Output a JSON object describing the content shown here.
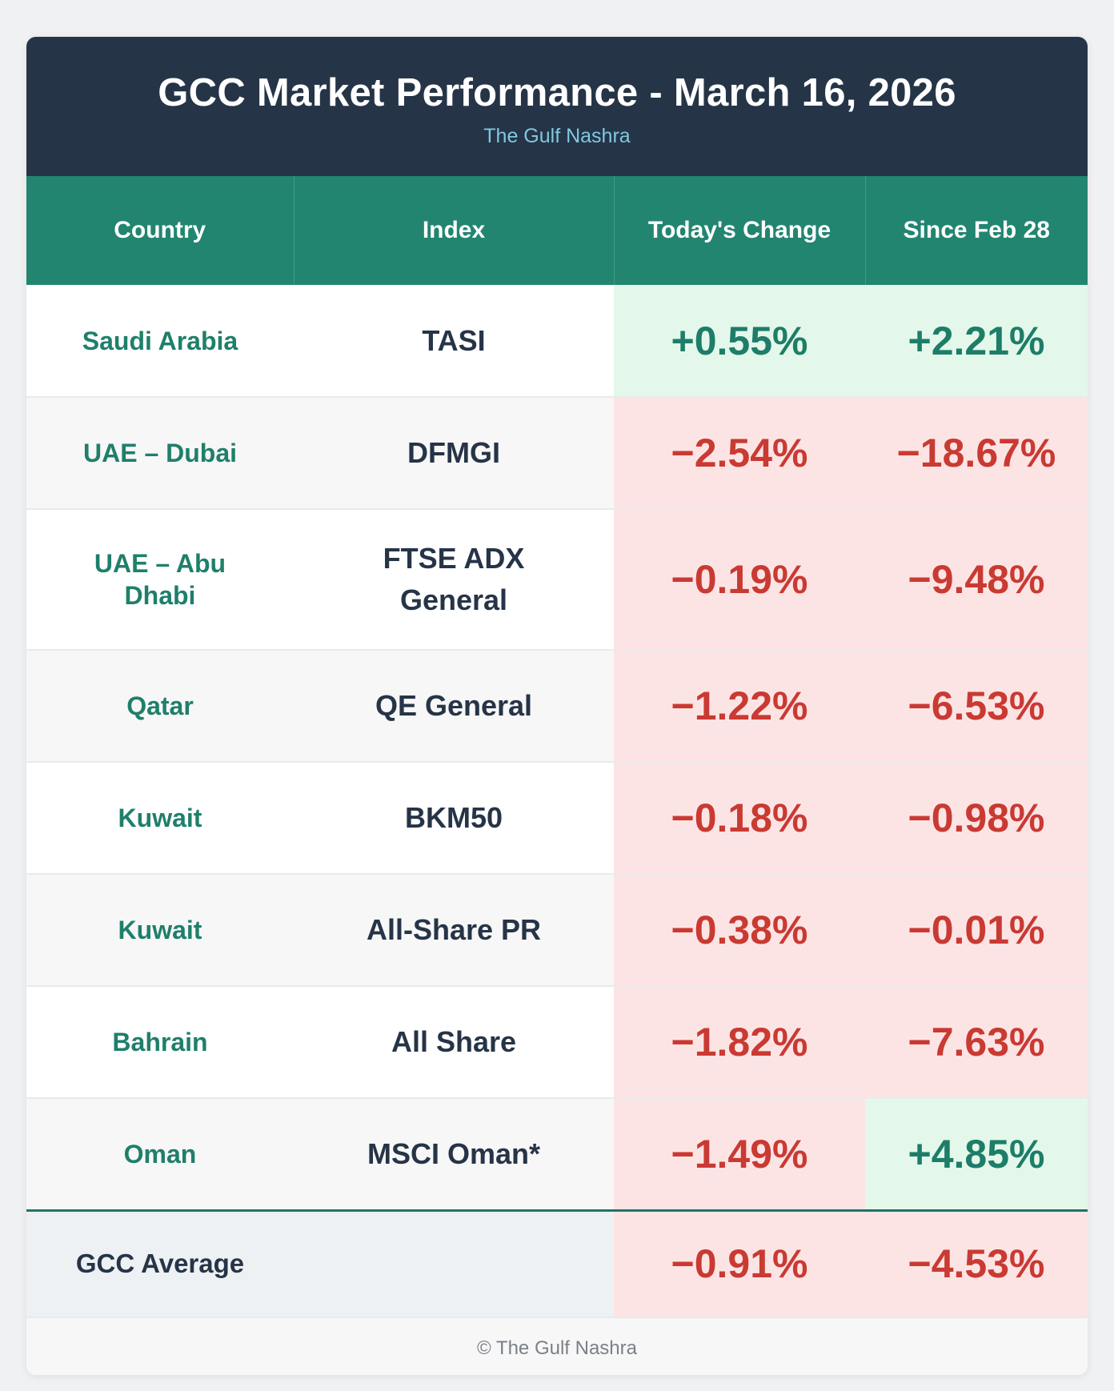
{
  "header": {
    "title": "GCC Market Performance - March 16, 2026",
    "subtitle": "The Gulf Nashra"
  },
  "chart_data": {
    "type": "table",
    "columns": [
      "Country",
      "Index",
      "Today's Change",
      "Since Feb 28"
    ],
    "rows": [
      {
        "country": "Saudi Arabia",
        "index": "TASI",
        "today": "+0.55%",
        "since": "+2.21%",
        "today_value": 0.55,
        "since_value": 2.21
      },
      {
        "country": "UAE – Dubai",
        "index": "DFMGI",
        "today": "−2.54%",
        "since": "−18.67%",
        "today_value": -2.54,
        "since_value": -18.67
      },
      {
        "country": "UAE – Abu Dhabi",
        "index": "FTSE ADX General",
        "today": "−0.19%",
        "since": "−9.48%",
        "today_value": -0.19,
        "since_value": -9.48
      },
      {
        "country": "Qatar",
        "index": "QE General",
        "today": "−1.22%",
        "since": "−6.53%",
        "today_value": -1.22,
        "since_value": -6.53
      },
      {
        "country": "Kuwait",
        "index": "BKM50",
        "today": "−0.18%",
        "since": "−0.98%",
        "today_value": -0.18,
        "since_value": -0.98
      },
      {
        "country": "Kuwait",
        "index": "All-Share PR",
        "today": "−0.38%",
        "since": "−0.01%",
        "today_value": -0.38,
        "since_value": -0.01
      },
      {
        "country": "Bahrain",
        "index": "All Share",
        "today": "−1.82%",
        "since": "−7.63%",
        "today_value": -1.82,
        "since_value": -7.63
      },
      {
        "country": "Oman",
        "index": "MSCI Oman*",
        "today": "−1.49%",
        "since": "+4.85%",
        "today_value": -1.49,
        "since_value": 4.85
      }
    ],
    "average": {
      "label": "GCC Average",
      "today": "−0.91%",
      "since": "−4.53%",
      "today_value": -0.91,
      "since_value": -4.53
    }
  },
  "colors": {
    "header_bg": "#263447",
    "column_header_bg": "#228570",
    "positive_text": "#1d7d68",
    "positive_bg": "#e3f8ea",
    "negative_text": "#c93a33",
    "negative_bg": "#fde4e4"
  },
  "footer": {
    "text": "© The Gulf Nashra"
  }
}
